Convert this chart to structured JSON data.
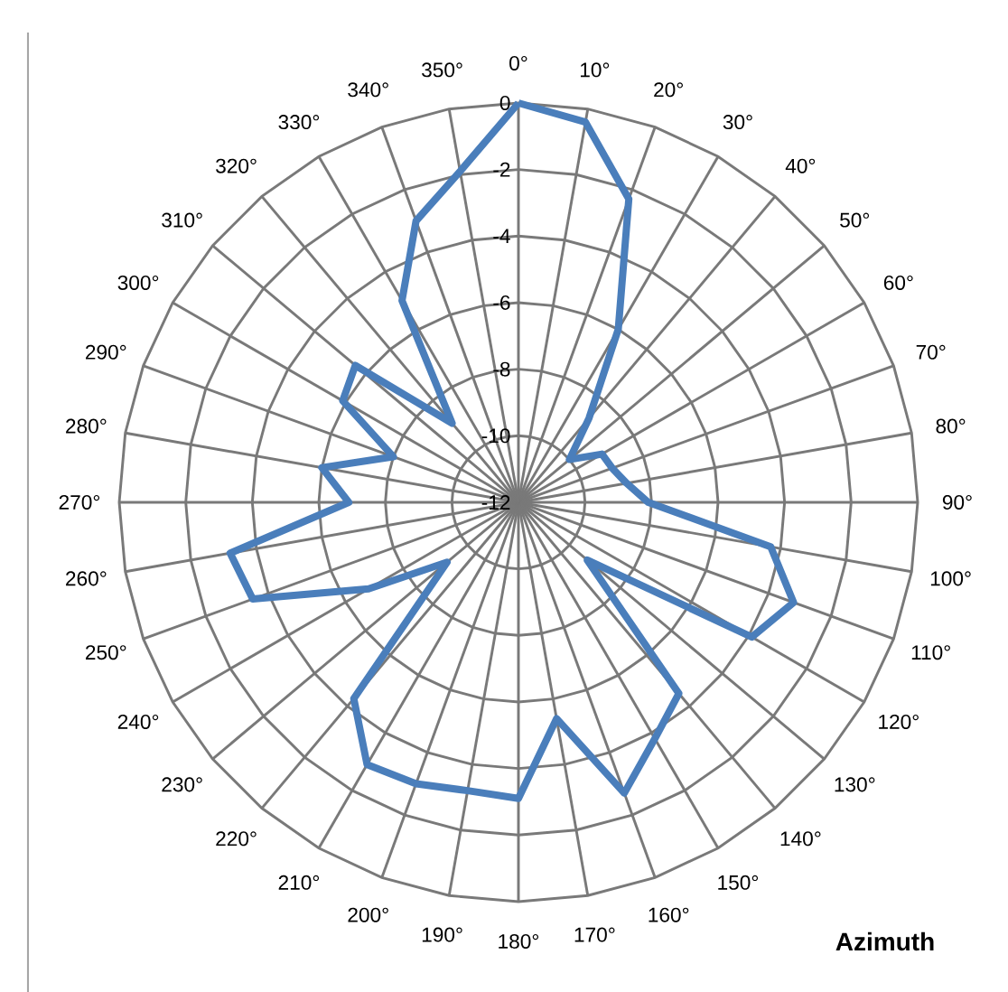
{
  "chart_data": {
    "type": "radar",
    "title": "Azimuth",
    "categories": [
      "0°",
      "10°",
      "20°",
      "30°",
      "40°",
      "50°",
      "60°",
      "70°",
      "80°",
      "90°",
      "100°",
      "110°",
      "120°",
      "130°",
      "140°",
      "150°",
      "160°",
      "170°",
      "180°",
      "190°",
      "200°",
      "210°",
      "220°",
      "230°",
      "240°",
      "250°",
      "260°",
      "270°",
      "280°",
      "290°",
      "300°",
      "310°",
      "320°",
      "330°",
      "340°",
      "350°"
    ],
    "series": [
      {
        "color": "#4a7ebb",
        "values": [
          0,
          -0.4,
          -2.3,
          -6.0,
          -8.7,
          -10.0,
          -9.1,
          -9.0,
          -8.7,
          -8.1,
          -4.3,
          -3.2,
          -3.9,
          -9.3,
          -4.5,
          -3.8,
          -2.7,
          -5.4,
          -3.1,
          -3.2,
          -3.0,
          -2.9,
          -4.3,
          -9.2,
          -6.8,
          -3.5,
          -3.2,
          -6.9,
          -6.0,
          -8.0,
          -5.9,
          -5.6,
          -8.9,
          -5.0,
          -3.0,
          -1.9
        ]
      }
    ],
    "ylim": [
      -12,
      0
    ],
    "yticks": [
      -12,
      -10,
      -8,
      -6,
      -4,
      -2,
      0
    ],
    "grid": true
  }
}
